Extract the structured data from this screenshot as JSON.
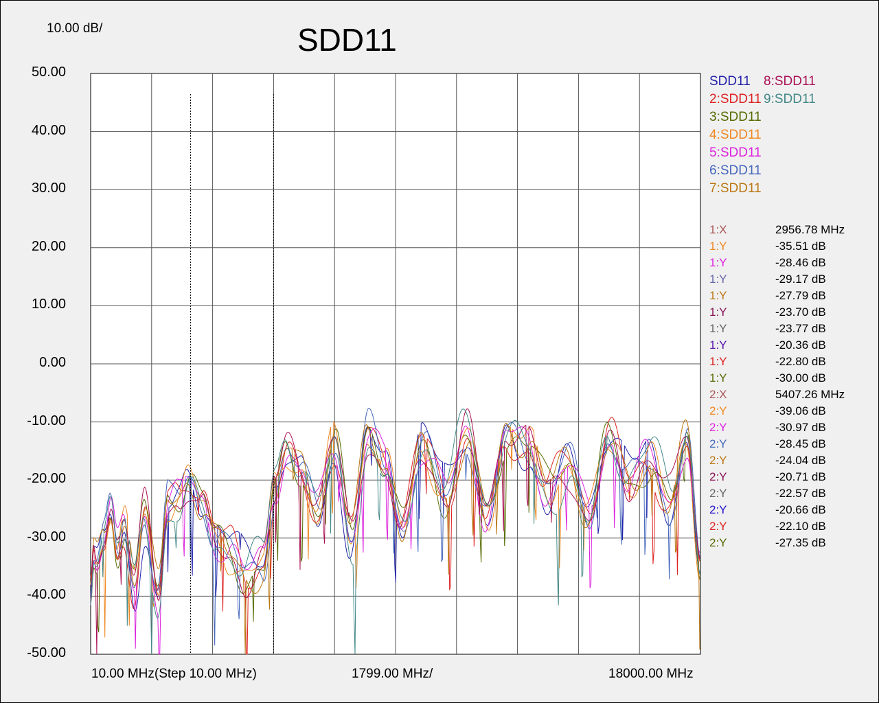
{
  "chart_data": {
    "type": "line",
    "title": "SDD11",
    "scale_per_div": "10.00 dB/",
    "xlabel_start": "10.00 MHz(Step 10.00 MHz)",
    "xlabel_step": "1799.00 MHz/",
    "xlabel_end": "18000.00 MHz",
    "xlim": [
      10,
      18000
    ],
    "ylim": [
      -50,
      50
    ],
    "ytick_labels": [
      "50.00",
      "40.00",
      "30.00",
      "20.00",
      "10.00",
      "0.00",
      "-10.00",
      "-20.00",
      "-30.00",
      "-40.00",
      "-50.00"
    ],
    "grid": true,
    "legend_position": "right",
    "marker_lines_mhz": [
      2956.78,
      5407.26
    ],
    "series": [
      {
        "name": "SDD11",
        "color": "#2222aa"
      },
      {
        "name": "2:SDD11",
        "color": "#dd2222"
      },
      {
        "name": "3:SDD11",
        "color": "#556b00"
      },
      {
        "name": "4:SDD11",
        "color": "#ee8822"
      },
      {
        "name": "5:SDD11",
        "color": "#dd22dd"
      },
      {
        "name": "6:SDD11",
        "color": "#4466bb"
      },
      {
        "name": "7:SDD11",
        "color": "#bb7711"
      },
      {
        "name": "8:SDD11",
        "color": "#aa1155"
      },
      {
        "name": "9:SDD11",
        "color": "#448888"
      }
    ],
    "markers": [
      {
        "label": "1:X",
        "value": "2956.78 MHz",
        "color": "#aa5555"
      },
      {
        "label": "1:Y",
        "value": "-35.51 dB",
        "color": "#ee8822"
      },
      {
        "label": "1:Y",
        "value": "-28.46 dB",
        "color": "#dd22dd"
      },
      {
        "label": "1:Y",
        "value": "-29.17 dB",
        "color": "#6666aa"
      },
      {
        "label": "1:Y",
        "value": "-27.79 dB",
        "color": "#bb7711"
      },
      {
        "label": "1:Y",
        "value": "-23.70 dB",
        "color": "#881155"
      },
      {
        "label": "1:Y",
        "value": "-23.77 dB",
        "color": "#666666"
      },
      {
        "label": "1:Y",
        "value": "-20.36 dB",
        "color": "#5511aa"
      },
      {
        "label": "1:Y",
        "value": "-22.80 dB",
        "color": "#dd2222"
      },
      {
        "label": "1:Y",
        "value": "-30.00 dB",
        "color": "#556b00"
      },
      {
        "label": "2:X",
        "value": "5407.26 MHz",
        "color": "#aa5555"
      },
      {
        "label": "2:Y",
        "value": "-39.06 dB",
        "color": "#ee8822"
      },
      {
        "label": "2:Y",
        "value": "-30.97 dB",
        "color": "#dd22dd"
      },
      {
        "label": "2:Y",
        "value": "-28.45 dB",
        "color": "#4466bb"
      },
      {
        "label": "2:Y",
        "value": "-24.04 dB",
        "color": "#bb7711"
      },
      {
        "label": "2:Y",
        "value": "-20.71 dB",
        "color": "#881155"
      },
      {
        "label": "2:Y",
        "value": "-22.57 dB",
        "color": "#666666"
      },
      {
        "label": "2:Y",
        "value": "-20.66 dB",
        "color": "#2211cc"
      },
      {
        "label": "2:Y",
        "value": "-22.10 dB",
        "color": "#dd2222"
      },
      {
        "label": "2:Y",
        "value": "-27.35 dB",
        "color": "#556b00"
      }
    ],
    "trace_anchors_mhz": [
      10,
      100,
      200,
      400,
      600,
      800,
      1000,
      1300,
      1600,
      2000,
      2300,
      2600,
      2900,
      3300,
      3700,
      4100,
      4600,
      5100,
      5450,
      5800,
      6200,
      6700,
      7200,
      7700,
      8200,
      8700,
      9200,
      9800,
      10500,
      11100,
      11700,
      12300,
      12900,
      13500,
      14100,
      14700,
      15300,
      15900,
      16500,
      17100,
      17600,
      18000
    ],
    "trace_anchors_db": [
      -40,
      -33,
      -34,
      -30,
      -25,
      -32,
      -28,
      -38,
      -26,
      -40,
      -24,
      -23,
      -20,
      -24,
      -30,
      -32,
      -36,
      -34,
      -21,
      -15,
      -18,
      -25,
      -14,
      -30,
      -12,
      -17,
      -28,
      -14,
      -22,
      -12,
      -26,
      -12,
      -14,
      -22,
      -17,
      -26,
      -13,
      -20,
      -16,
      -24,
      -13,
      -35
    ]
  }
}
